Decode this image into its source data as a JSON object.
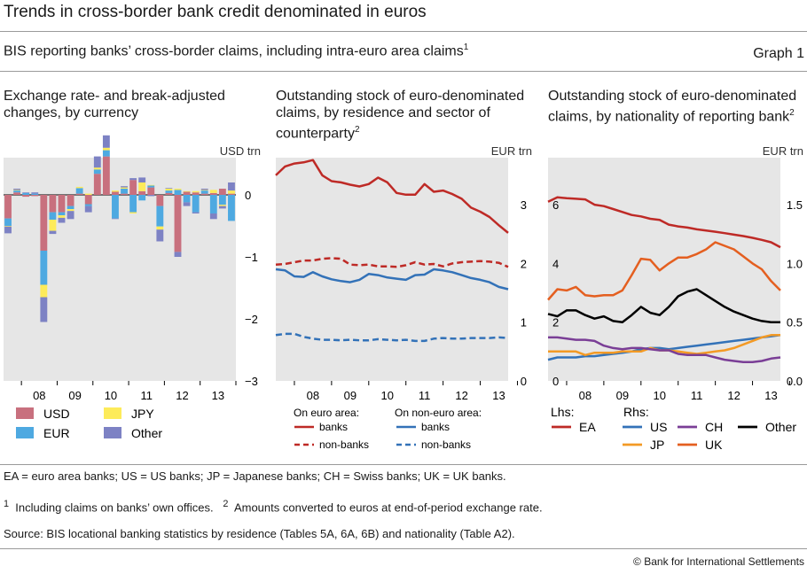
{
  "header": {
    "title": "Trends in cross-border bank credit denominated in euros",
    "subtitle": "BIS reporting banks’ cross-border claims, including intra-euro area claims",
    "subtitle_sup": "1",
    "graph_number": "Graph 1"
  },
  "panels": {
    "left": {
      "title": "Exchange rate- and break-adjusted changes, by currency",
      "unit": "USD trn"
    },
    "middle": {
      "title": "Outstanding stock of euro-denominated claims, by residence and sector of counterparty",
      "title_sup": "2",
      "unit": "EUR trn"
    },
    "right": {
      "title": "Outstanding stock of euro-denominated claims, by nationality of reporting bank",
      "title_sup": "2",
      "unit": "EUR trn"
    }
  },
  "colors": {
    "USD": "#c8707e",
    "EUR": "#4ea9e1",
    "JPY": "#fdeb5a",
    "Other": "#7d82c4",
    "red": "#be2a26",
    "blue": "#3372b8",
    "orange": "#f39a25",
    "dkorange": "#e45f20",
    "purple": "#7a3e96",
    "black": "#000000",
    "bg": "#e6e6e6"
  },
  "footer": {
    "abbrev": "EA = euro area banks; US = US banks; JP = Japanese banks; CH = Swiss banks; UK = UK banks.",
    "note1_num": "1",
    "note1": "Including claims on banks’ own offices.",
    "note2_num": "2",
    "note2": "Amounts converted to euros at end-of-period exchange rate.",
    "source": "Source: BIS locational banking statistics by residence (Tables 5A, 6A, 6B) and nationality (Table A2).",
    "copyright": "© Bank for International Settlements"
  },
  "chart_data": [
    {
      "id": "left",
      "type": "bar",
      "stacked": true,
      "title": "Exchange rate- and break-adjusted changes, by currency",
      "ylabel": "USD trn",
      "ylim": [
        -3,
        0.6
      ],
      "yticks": [
        0,
        -1,
        -2,
        -3
      ],
      "year_labels": [
        "08",
        "09",
        "10",
        "11",
        "12",
        "13"
      ],
      "legend_labels": {
        "USD": "USD",
        "EUR": "EUR",
        "JPY": "JPY",
        "Other": "Other"
      },
      "categories": [
        "2007Q3",
        "2007Q4",
        "2008Q1",
        "2008Q2",
        "2008Q3",
        "2008Q4",
        "2009Q1",
        "2009Q2",
        "2009Q3",
        "2009Q4",
        "2010Q1",
        "2010Q2",
        "2010Q3",
        "2010Q4",
        "2011Q1",
        "2011Q2",
        "2011Q3",
        "2011Q4",
        "2012Q1",
        "2012Q2",
        "2012Q3",
        "2012Q4",
        "2013Q1",
        "2013Q2",
        "2013Q3",
        "2013Q4"
      ],
      "series": [
        {
          "name": "USD",
          "values": [
            -0.38,
            0.04,
            -0.03,
            -0.02,
            -0.9,
            -0.28,
            -0.28,
            -0.18,
            0.02,
            -0.15,
            0.34,
            0.62,
            0.05,
            0.02,
            0.24,
            0.06,
            0.12,
            -0.18,
            0.03,
            -0.92,
            0.05,
            0.04,
            0.02,
            0.03,
            0.1,
            0.02
          ]
        },
        {
          "name": "EUR",
          "values": [
            -0.12,
            0.03,
            0.03,
            0.02,
            -0.55,
            -0.12,
            -0.05,
            -0.05,
            0.09,
            -0.03,
            0.07,
            0.1,
            -0.38,
            0.08,
            -0.28,
            -0.09,
            0.03,
            -0.33,
            0.04,
            0.08,
            -0.12,
            -0.28,
            0.05,
            -0.3,
            -0.16,
            -0.42
          ]
        },
        {
          "name": "JPY",
          "values": [
            -0.01,
            0.01,
            0.0,
            0.0,
            -0.2,
            -0.18,
            -0.04,
            -0.03,
            0.02,
            0.02,
            0.03,
            0.04,
            0.02,
            0.02,
            -0.02,
            0.14,
            0.01,
            -0.05,
            0.03,
            0.02,
            0.01,
            0.02,
            0.01,
            0.05,
            -0.02,
            0.05
          ]
        },
        {
          "name": "Other",
          "values": [
            -0.11,
            0.02,
            0.01,
            0.02,
            -0.4,
            -0.05,
            -0.08,
            -0.13,
            0.0,
            -0.1,
            0.18,
            0.2,
            -0.01,
            0.02,
            0.03,
            0.08,
            -0.02,
            -0.19,
            0.01,
            -0.08,
            -0.06,
            -0.02,
            0.02,
            -0.09,
            -0.04,
            0.13
          ]
        }
      ]
    },
    {
      "id": "middle",
      "type": "line",
      "title": "Outstanding stock of euro-denominated claims, by residence and sector of counterparty",
      "ylabel": "EUR trn",
      "ylim": [
        0,
        3.8
      ],
      "yticks": [
        0,
        1,
        2,
        3
      ],
      "x_start": 2007.5,
      "x_end": 2013.75,
      "year_labels": [
        "08",
        "09",
        "10",
        "11",
        "12",
        "13"
      ],
      "legend_headers": [
        "On euro area:",
        "On non-euro area:"
      ],
      "series": [
        {
          "name": "banks",
          "group": "On euro area",
          "color": "red",
          "dashed": false,
          "values": [
            3.5,
            3.65,
            3.7,
            3.72,
            3.76,
            3.5,
            3.4,
            3.38,
            3.34,
            3.31,
            3.35,
            3.46,
            3.38,
            3.2,
            3.17,
            3.17,
            3.35,
            3.22,
            3.24,
            3.18,
            3.1,
            2.95,
            2.88,
            2.79,
            2.65,
            2.52
          ]
        },
        {
          "name": "non-banks",
          "group": "On euro area",
          "color": "red",
          "dashed": true,
          "values": [
            1.98,
            1.99,
            2.02,
            2.05,
            2.05,
            2.08,
            2.09,
            2.08,
            1.98,
            1.97,
            1.98,
            1.95,
            1.95,
            1.94,
            1.97,
            2.02,
            1.98,
            1.99,
            1.95,
            2.0,
            2.02,
            2.03,
            2.04,
            2.03,
            2.01,
            1.94
          ]
        },
        {
          "name": "banks",
          "group": "On non-euro area",
          "color": "blue",
          "dashed": false,
          "values": [
            1.9,
            1.88,
            1.78,
            1.77,
            1.85,
            1.78,
            1.73,
            1.7,
            1.68,
            1.72,
            1.82,
            1.8,
            1.76,
            1.74,
            1.72,
            1.8,
            1.81,
            1.9,
            1.88,
            1.85,
            1.8,
            1.75,
            1.72,
            1.68,
            1.6,
            1.56
          ]
        },
        {
          "name": "non-banks",
          "group": "On non-euro area",
          "color": "blue",
          "dashed": true,
          "values": [
            0.78,
            0.8,
            0.8,
            0.75,
            0.72,
            0.7,
            0.7,
            0.69,
            0.7,
            0.69,
            0.69,
            0.71,
            0.7,
            0.69,
            0.7,
            0.68,
            0.68,
            0.72,
            0.73,
            0.72,
            0.72,
            0.73,
            0.73,
            0.73,
            0.74,
            0.73
          ]
        }
      ]
    },
    {
      "id": "right",
      "type": "line",
      "title": "Outstanding stock of euro-denominated claims, by nationality of reporting bank",
      "ylabel": "EUR trn",
      "ylim_left": [
        0,
        7.6
      ],
      "yticks_left": [
        0,
        2,
        4,
        6
      ],
      "ylim_right": [
        0,
        1.9
      ],
      "yticks_right": [
        "0.0",
        "0.5",
        "1.0",
        "1.5"
      ],
      "x_start": 2007.5,
      "x_end": 2013.75,
      "year_labels": [
        "08",
        "09",
        "10",
        "11",
        "12",
        "13"
      ],
      "legend_headers": [
        "Lhs:",
        "Rhs:"
      ],
      "series": [
        {
          "name": "EA",
          "axis": "left",
          "color": "red",
          "values": [
            6.1,
            6.25,
            6.22,
            6.2,
            6.18,
            6.0,
            5.95,
            5.85,
            5.75,
            5.65,
            5.6,
            5.52,
            5.48,
            5.32,
            5.26,
            5.22,
            5.16,
            5.12,
            5.08,
            5.03,
            4.98,
            4.93,
            4.87,
            4.8,
            4.72,
            4.55
          ]
        },
        {
          "name": "US",
          "axis": "right",
          "color": "blue",
          "values": [
            0.18,
            0.2,
            0.2,
            0.2,
            0.21,
            0.21,
            0.22,
            0.23,
            0.24,
            0.25,
            0.27,
            0.28,
            0.28,
            0.27,
            0.28,
            0.29,
            0.3,
            0.31,
            0.32,
            0.33,
            0.34,
            0.35,
            0.36,
            0.37,
            0.38,
            0.39
          ]
        },
        {
          "name": "JP",
          "axis": "right",
          "color": "orange",
          "values": [
            0.25,
            0.25,
            0.25,
            0.25,
            0.22,
            0.24,
            0.24,
            0.24,
            0.25,
            0.25,
            0.25,
            0.28,
            0.26,
            0.26,
            0.25,
            0.24,
            0.23,
            0.24,
            0.25,
            0.26,
            0.28,
            0.31,
            0.34,
            0.37,
            0.39,
            0.39
          ]
        },
        {
          "name": "CH",
          "axis": "right",
          "color": "purple",
          "values": [
            0.37,
            0.37,
            0.36,
            0.35,
            0.35,
            0.34,
            0.3,
            0.28,
            0.27,
            0.28,
            0.28,
            0.27,
            0.26,
            0.26,
            0.23,
            0.22,
            0.22,
            0.22,
            0.2,
            0.18,
            0.17,
            0.16,
            0.16,
            0.17,
            0.19,
            0.2
          ]
        },
        {
          "name": "UK",
          "axis": "right",
          "color": "dkorange",
          "values": [
            0.69,
            0.78,
            0.77,
            0.8,
            0.73,
            0.72,
            0.73,
            0.73,
            0.77,
            0.9,
            1.04,
            1.03,
            0.94,
            1.0,
            1.05,
            1.05,
            1.08,
            1.12,
            1.18,
            1.15,
            1.12,
            1.06,
            1.0,
            0.95,
            0.85,
            0.77
          ]
        },
        {
          "name": "Other",
          "axis": "right",
          "color": "black",
          "values": [
            0.57,
            0.55,
            0.6,
            0.6,
            0.56,
            0.53,
            0.55,
            0.51,
            0.5,
            0.56,
            0.63,
            0.58,
            0.56,
            0.63,
            0.72,
            0.76,
            0.78,
            0.73,
            0.68,
            0.63,
            0.59,
            0.56,
            0.53,
            0.51,
            0.5,
            0.5
          ]
        }
      ]
    }
  ]
}
